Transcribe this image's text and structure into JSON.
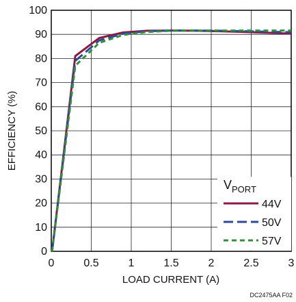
{
  "chart_data": {
    "type": "line",
    "xlabel": "LOAD CURRENT (A)",
    "ylabel": "EFFICIENCY (%)",
    "xlim": [
      0,
      3
    ],
    "ylim": [
      0,
      100
    ],
    "x_ticks": [
      "0",
      "0.5",
      "1",
      "1.5",
      "2",
      "2.5",
      "3"
    ],
    "y_ticks": [
      "0",
      "10",
      "20",
      "30",
      "40",
      "50",
      "60",
      "70",
      "80",
      "90",
      "100"
    ],
    "grid": true,
    "legend": {
      "title_main": "V",
      "title_sub": "PORT",
      "position": "bottom-right"
    },
    "series": [
      {
        "name": "44V",
        "color": "#8b1a3c",
        "dash": "solid",
        "x": [
          0.01,
          0.3,
          0.6,
          0.9,
          1.2,
          1.5,
          1.8,
          2.1,
          2.4,
          2.7,
          3.0
        ],
        "y": [
          0,
          81,
          88.5,
          90.8,
          91.5,
          91.6,
          91.5,
          91.3,
          91.0,
          90.7,
          90.3
        ]
      },
      {
        "name": "50V",
        "color": "#2e4a9e",
        "dash": "long",
        "x": [
          0.01,
          0.3,
          0.6,
          0.9,
          1.2,
          1.5,
          1.8,
          2.1,
          2.4,
          2.7,
          3.0
        ],
        "y": [
          0,
          79,
          87.5,
          90.3,
          91.3,
          91.6,
          91.6,
          91.5,
          91.3,
          91.1,
          90.9
        ]
      },
      {
        "name": "57V",
        "color": "#2f8f3a",
        "dash": "short",
        "x": [
          0.01,
          0.3,
          0.6,
          0.9,
          1.2,
          1.5,
          1.8,
          2.1,
          2.4,
          2.7,
          3.0
        ],
        "y": [
          0,
          77,
          86.5,
          89.8,
          91.0,
          91.5,
          91.6,
          91.6,
          91.6,
          91.6,
          91.6
        ]
      }
    ]
  },
  "footer": {
    "code": "DC2475AA F02"
  }
}
